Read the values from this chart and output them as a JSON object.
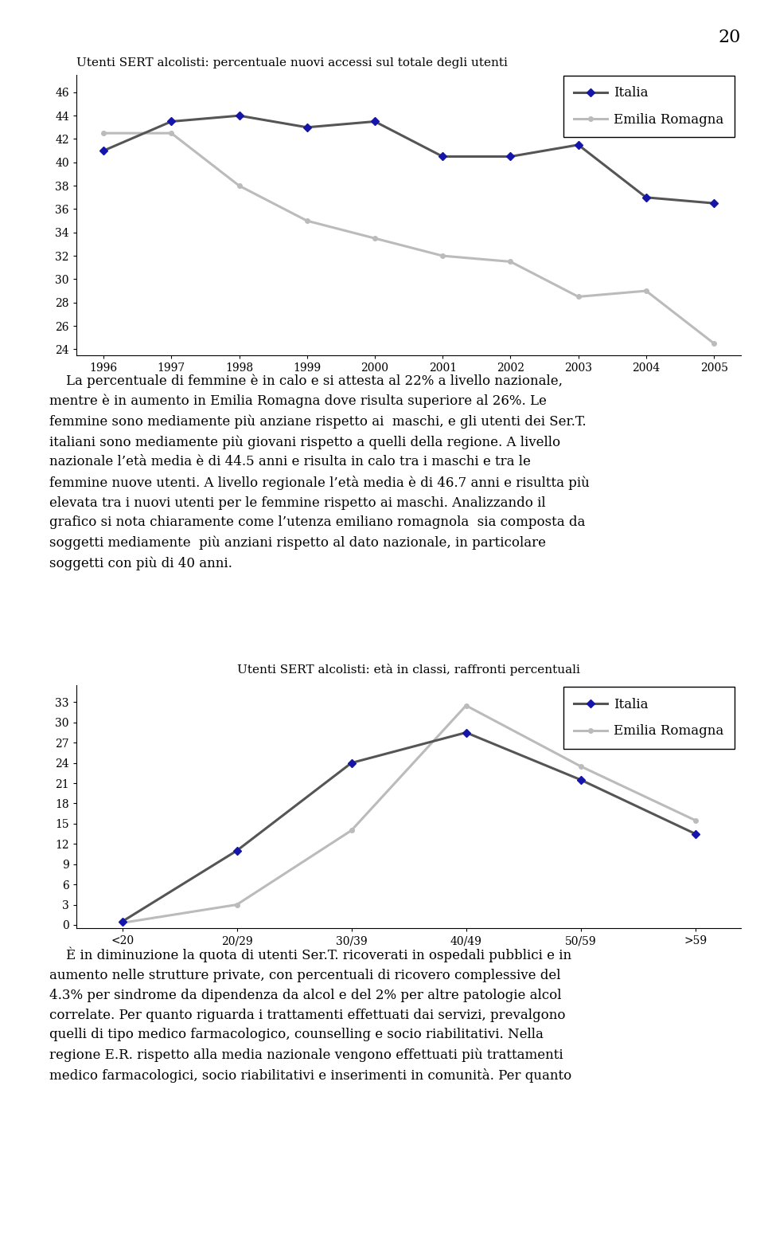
{
  "page_number": "20",
  "chart1": {
    "title": "Utenti SERT alcolisti: percentuale nuovi accessi sul totale degli utenti",
    "years": [
      1996,
      1997,
      1998,
      1999,
      2000,
      2001,
      2002,
      2003,
      2004,
      2005
    ],
    "italia": [
      41.0,
      43.5,
      44.0,
      43.0,
      43.5,
      40.5,
      40.5,
      41.5,
      37.0,
      36.5
    ],
    "emilia": [
      42.5,
      42.5,
      38.0,
      35.0,
      33.5,
      32.0,
      31.5,
      28.5,
      29.0,
      24.5
    ],
    "yticks": [
      24,
      26,
      28,
      30,
      32,
      34,
      36,
      38,
      40,
      42,
      44,
      46
    ],
    "ylim": [
      23.5,
      47.5
    ],
    "italia_line_color": "#555555",
    "italia_marker_color": "#1515AA",
    "emilia_color": "#BBBBBB",
    "legend_italia": "Italia",
    "legend_emilia": "Emilia Romagna"
  },
  "text1_lines": [
    "    La percentuale di femmine è in calo e si attesta al 22% a livello nazionale,",
    "mentre è in aumento in Emilia Romagna dove risulta superiore al 26%. Le",
    "femmine sono mediamente più anziane rispetto ai  maschi, e gli utenti dei Ser.T.",
    "italiani sono mediamente più giovani rispetto a quelli della regione. A livello",
    "nazionale l’età media è di 44.5 anni e risulta in calo tra i maschi e tra le",
    "femmine nuove utenti. A livello regionale l’età media è di 46.7 anni e risultta più",
    "elevata tra i nuovi utenti per le femmine rispetto ai maschi. Analizzando il",
    "grafico si nota chiaramente come l’utenza emiliano romagnola  sia composta da",
    "soggetti mediamente  più anziani rispetto al dato nazionale, in particolare",
    "soggetti con più di 40 anni."
  ],
  "chart2": {
    "title": "Utenti SERT alcolisti: età in classi, raffronti percentuali",
    "categories": [
      "<20",
      "20/29",
      "30/39",
      "40/49",
      "50/59",
      ">59"
    ],
    "italia": [
      0.5,
      11.0,
      24.0,
      28.5,
      21.5,
      13.5
    ],
    "emilia": [
      0.3,
      3.0,
      14.0,
      32.5,
      23.5,
      15.5
    ],
    "yticks": [
      0,
      3,
      6,
      9,
      12,
      15,
      18,
      21,
      24,
      27,
      30,
      33
    ],
    "ylim": [
      -0.5,
      35.5
    ],
    "italia_line_color": "#555555",
    "italia_marker_color": "#1515AA",
    "emilia_color": "#BBBBBB",
    "legend_italia": "Italia",
    "legend_emilia": "Emilia Romagna"
  },
  "text2_lines": [
    "    È in diminuzione la quota di utenti Ser.T. ricoverati in ospedali pubblici e in",
    "aumento nelle strutture private, con percentuali di ricovero complessive del",
    "4.3% per sindrome da dipendenza da alcol e del 2% per altre patologie alcol",
    "correlate. Per quanto riguarda i trattamenti effettuati dai servizi, prevalgono",
    "quelli di tipo medico farmacologico, counselling e socio riabilitativi. Nella",
    "regione E.R. rispetto alla media nazionale vengono effettuati più trattamenti",
    "medico farmacologici, socio riabilitativi e inserimenti in comunità. Per quanto"
  ]
}
